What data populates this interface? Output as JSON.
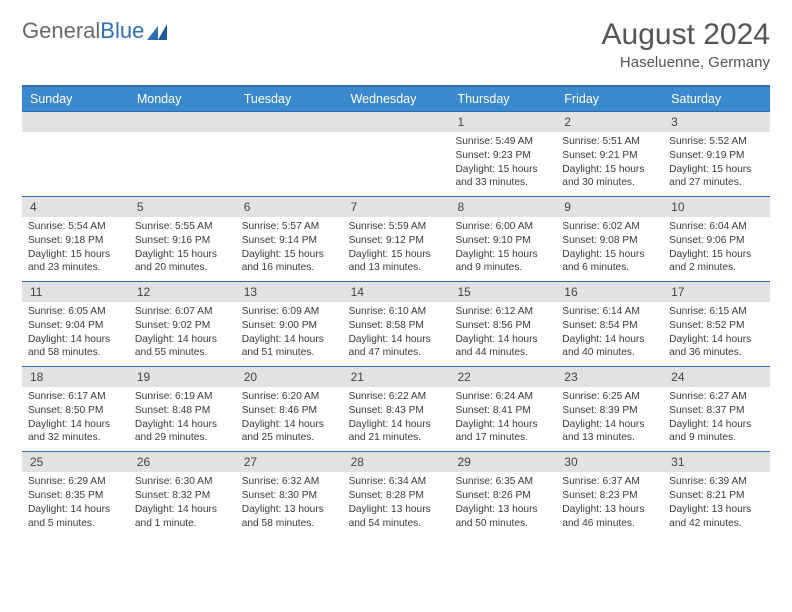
{
  "logo": {
    "text1": "General",
    "text2": "Blue"
  },
  "title": "August 2024",
  "location": "Haseluenne, Germany",
  "colors": {
    "header_bg": "#3a89cc",
    "rule": "#2f6fb0",
    "daynum_bg": "#e2e2e2",
    "text": "#3a3a3a"
  },
  "day_labels": [
    "Sunday",
    "Monday",
    "Tuesday",
    "Wednesday",
    "Thursday",
    "Friday",
    "Saturday"
  ],
  "weeks": [
    {
      "nums": [
        "",
        "",
        "",
        "",
        "1",
        "2",
        "3"
      ],
      "data": [
        "",
        "",
        "",
        "",
        "Sunrise: 5:49 AM\nSunset: 9:23 PM\nDaylight: 15 hours and 33 minutes.",
        "Sunrise: 5:51 AM\nSunset: 9:21 PM\nDaylight: 15 hours and 30 minutes.",
        "Sunrise: 5:52 AM\nSunset: 9:19 PM\nDaylight: 15 hours and 27 minutes."
      ]
    },
    {
      "nums": [
        "4",
        "5",
        "6",
        "7",
        "8",
        "9",
        "10"
      ],
      "data": [
        "Sunrise: 5:54 AM\nSunset: 9:18 PM\nDaylight: 15 hours and 23 minutes.",
        "Sunrise: 5:55 AM\nSunset: 9:16 PM\nDaylight: 15 hours and 20 minutes.",
        "Sunrise: 5:57 AM\nSunset: 9:14 PM\nDaylight: 15 hours and 16 minutes.",
        "Sunrise: 5:59 AM\nSunset: 9:12 PM\nDaylight: 15 hours and 13 minutes.",
        "Sunrise: 6:00 AM\nSunset: 9:10 PM\nDaylight: 15 hours and 9 minutes.",
        "Sunrise: 6:02 AM\nSunset: 9:08 PM\nDaylight: 15 hours and 6 minutes.",
        "Sunrise: 6:04 AM\nSunset: 9:06 PM\nDaylight: 15 hours and 2 minutes."
      ]
    },
    {
      "nums": [
        "11",
        "12",
        "13",
        "14",
        "15",
        "16",
        "17"
      ],
      "data": [
        "Sunrise: 6:05 AM\nSunset: 9:04 PM\nDaylight: 14 hours and 58 minutes.",
        "Sunrise: 6:07 AM\nSunset: 9:02 PM\nDaylight: 14 hours and 55 minutes.",
        "Sunrise: 6:09 AM\nSunset: 9:00 PM\nDaylight: 14 hours and 51 minutes.",
        "Sunrise: 6:10 AM\nSunset: 8:58 PM\nDaylight: 14 hours and 47 minutes.",
        "Sunrise: 6:12 AM\nSunset: 8:56 PM\nDaylight: 14 hours and 44 minutes.",
        "Sunrise: 6:14 AM\nSunset: 8:54 PM\nDaylight: 14 hours and 40 minutes.",
        "Sunrise: 6:15 AM\nSunset: 8:52 PM\nDaylight: 14 hours and 36 minutes."
      ]
    },
    {
      "nums": [
        "18",
        "19",
        "20",
        "21",
        "22",
        "23",
        "24"
      ],
      "data": [
        "Sunrise: 6:17 AM\nSunset: 8:50 PM\nDaylight: 14 hours and 32 minutes.",
        "Sunrise: 6:19 AM\nSunset: 8:48 PM\nDaylight: 14 hours and 29 minutes.",
        "Sunrise: 6:20 AM\nSunset: 8:46 PM\nDaylight: 14 hours and 25 minutes.",
        "Sunrise: 6:22 AM\nSunset: 8:43 PM\nDaylight: 14 hours and 21 minutes.",
        "Sunrise: 6:24 AM\nSunset: 8:41 PM\nDaylight: 14 hours and 17 minutes.",
        "Sunrise: 6:25 AM\nSunset: 8:39 PM\nDaylight: 14 hours and 13 minutes.",
        "Sunrise: 6:27 AM\nSunset: 8:37 PM\nDaylight: 14 hours and 9 minutes."
      ]
    },
    {
      "nums": [
        "25",
        "26",
        "27",
        "28",
        "29",
        "30",
        "31"
      ],
      "data": [
        "Sunrise: 6:29 AM\nSunset: 8:35 PM\nDaylight: 14 hours and 5 minutes.",
        "Sunrise: 6:30 AM\nSunset: 8:32 PM\nDaylight: 14 hours and 1 minute.",
        "Sunrise: 6:32 AM\nSunset: 8:30 PM\nDaylight: 13 hours and 58 minutes.",
        "Sunrise: 6:34 AM\nSunset: 8:28 PM\nDaylight: 13 hours and 54 minutes.",
        "Sunrise: 6:35 AM\nSunset: 8:26 PM\nDaylight: 13 hours and 50 minutes.",
        "Sunrise: 6:37 AM\nSunset: 8:23 PM\nDaylight: 13 hours and 46 minutes.",
        "Sunrise: 6:39 AM\nSunset: 8:21 PM\nDaylight: 13 hours and 42 minutes."
      ]
    }
  ]
}
